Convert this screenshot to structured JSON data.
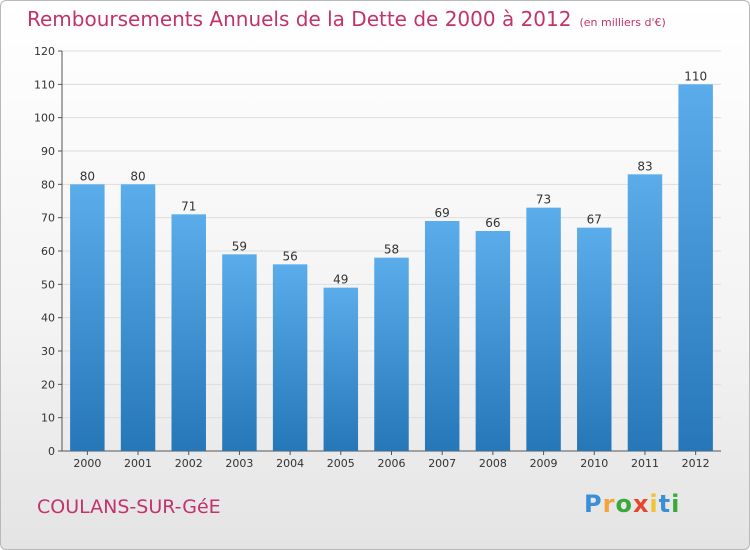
{
  "title": "Remboursements Annuels de la Dette de 2000 à 2012",
  "subtitle": "(en milliers d'€)",
  "town": "COULANS-SUR-GéE",
  "logo": "Proxiti",
  "colors": {
    "title": "#c2336a",
    "bar_top": "#5aacea",
    "bar_bottom": "#2677b8",
    "grid": "#dddddd"
  },
  "chart_data": {
    "type": "bar",
    "categories": [
      "2000",
      "2001",
      "2002",
      "2003",
      "2004",
      "2005",
      "2006",
      "2007",
      "2008",
      "2009",
      "2010",
      "2011",
      "2012"
    ],
    "values": [
      80,
      80,
      71,
      59,
      56,
      49,
      58,
      69,
      66,
      73,
      67,
      83,
      110
    ],
    "ylim": [
      0,
      120
    ],
    "yticks": [
      0,
      10,
      20,
      30,
      40,
      50,
      60,
      70,
      80,
      90,
      100,
      110,
      120
    ],
    "grid": true,
    "xlabel": "",
    "ylabel": ""
  }
}
